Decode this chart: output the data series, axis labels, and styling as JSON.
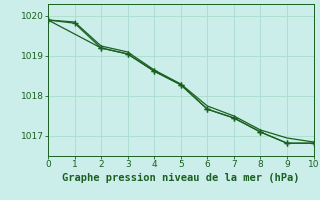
{
  "xlabel": "Graphe pression niveau de la mer (hPa)",
  "xlim": [
    0,
    10
  ],
  "ylim": [
    1016.5,
    1020.3
  ],
  "yticks": [
    1017,
    1018,
    1019,
    1020
  ],
  "xticks": [
    0,
    1,
    2,
    3,
    4,
    5,
    6,
    7,
    8,
    9,
    10
  ],
  "background_color": "#cceeea",
  "grid_color": "#aaddcc",
  "line_color": "#1a6020",
  "line1_x": [
    0,
    1,
    2,
    3,
    4,
    5,
    6,
    7,
    8,
    9,
    10
  ],
  "line1_y": [
    1019.9,
    1019.85,
    1019.25,
    1019.1,
    1018.65,
    1018.3,
    1017.75,
    1017.5,
    1017.15,
    1016.95,
    1016.85
  ],
  "line2_x": [
    0,
    2,
    3,
    4,
    5,
    6,
    7,
    8,
    9,
    10
  ],
  "line2_y": [
    1019.9,
    1019.2,
    1019.05,
    1018.62,
    1018.28,
    1017.67,
    1017.45,
    1017.1,
    1016.82,
    1016.82
  ],
  "line3_x": [
    0,
    1,
    2,
    3,
    4,
    5,
    6,
    7,
    8,
    9,
    10
  ],
  "line3_y": [
    1019.9,
    1019.82,
    1019.2,
    1019.05,
    1018.62,
    1018.28,
    1017.67,
    1017.45,
    1017.1,
    1016.82,
    1016.82
  ],
  "tick_color": "#1a6020",
  "tick_fontsize": 6.5,
  "xlabel_fontsize": 7.5
}
